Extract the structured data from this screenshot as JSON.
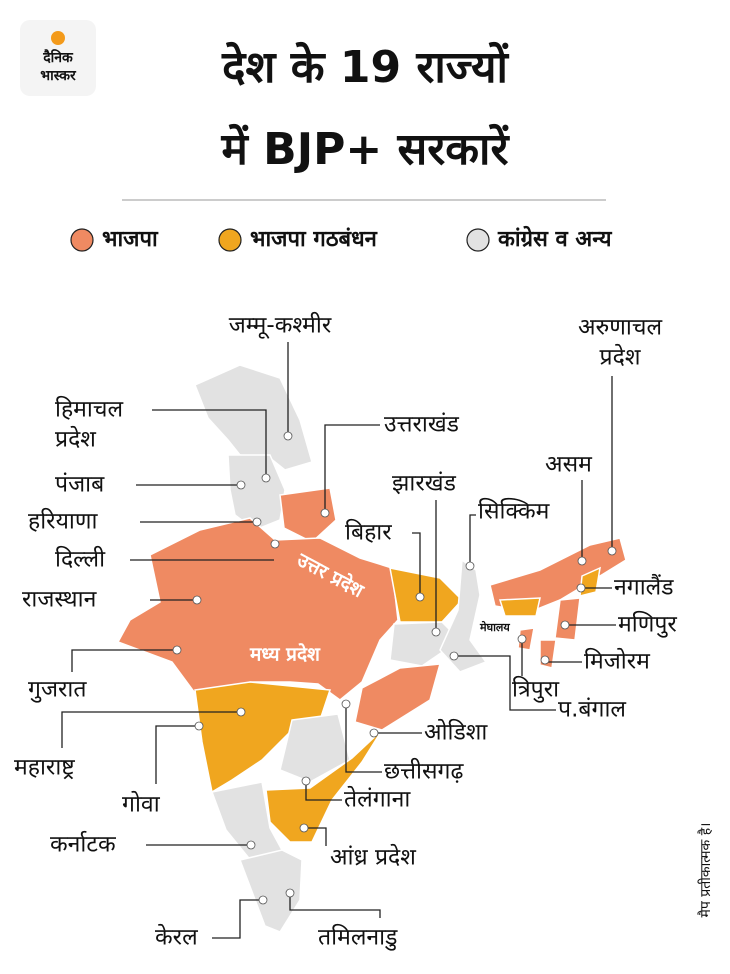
{
  "logo": {
    "line1": "दैनिक",
    "line2": "भास्कर"
  },
  "title": {
    "line1": "देश के 19 राज्यों",
    "line2": "में BJP+ सरकारें"
  },
  "legend": [
    {
      "label": "भाजपा",
      "color": "#ef8a62"
    },
    {
      "label": "भाजपा गठबंधन",
      "color": "#f0a61f"
    },
    {
      "label": "कांग्रेस व अन्य",
      "color": "#e2e2e2"
    }
  ],
  "states": [
    "जम्मू-कश्मीर",
    [
      "हिमाचल",
      "प्रदेश"
    ],
    "पंजाब",
    "हरियाणा",
    "दिल्ली",
    "राजस्थान",
    "गुजरात",
    "महाराष्ट्र",
    "गोवा",
    "कर्नाटक",
    "केरल",
    "तमिलनाडु",
    "उत्तराखंड",
    "झारखंड",
    "बिहार",
    "सिक्किम",
    [
      "अरुणाचल",
      "प्रदेश"
    ],
    "असम",
    "नगालैंड",
    "मणिपुर",
    "मिजोरम",
    "त्रिपुरा",
    "प.बंगाल",
    "ओडिशा",
    "छत्तीसगढ़",
    "तेलंगाना",
    "आंध्र प्रदेश"
  ],
  "map_labels": [
    "उत्तर प्रदेश",
    "मध्य प्रदेश",
    "मेघालय"
  ],
  "note": "मैप प्रतीकात्मक है।"
}
